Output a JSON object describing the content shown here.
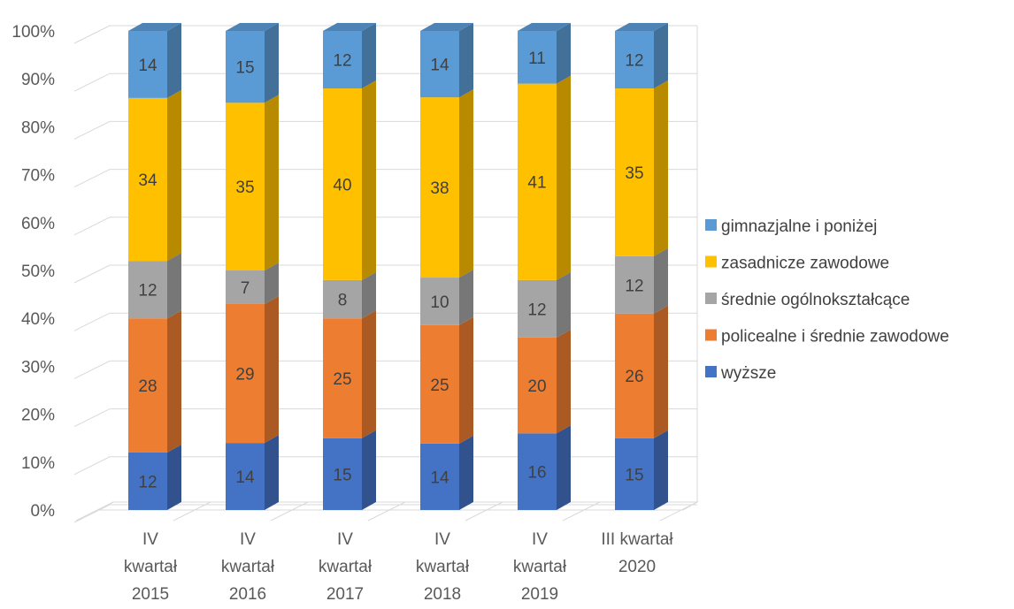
{
  "chart_data": {
    "type": "bar",
    "stacked": "percent",
    "three_d": true,
    "categories": [
      [
        "IV",
        "kwartał",
        "2015"
      ],
      [
        "IV",
        "kwartał",
        "2016"
      ],
      [
        "IV",
        "kwartał",
        "2017"
      ],
      [
        "IV",
        "kwartał",
        "2018"
      ],
      [
        "IV",
        "kwartał",
        "2019"
      ],
      [
        "III kwartał",
        "2020"
      ]
    ],
    "series": [
      {
        "name": "wyższe",
        "color": "#4472C4",
        "values": [
          12,
          14,
          15,
          14,
          16,
          15
        ]
      },
      {
        "name": "policealne i średnie zawodowe",
        "color": "#ED7D31",
        "values": [
          28,
          29,
          25,
          25,
          20,
          26
        ]
      },
      {
        "name": "średnie ogólnokształcące",
        "color": "#A5A5A5",
        "values": [
          12,
          7,
          8,
          10,
          12,
          12
        ]
      },
      {
        "name": "zasadnicze zawodowe",
        "color": "#FFC000",
        "values": [
          34,
          35,
          40,
          38,
          41,
          35
        ]
      },
      {
        "name": "gimnazjalne i poniżej",
        "color": "#5B9BD5",
        "values": [
          14,
          15,
          12,
          14,
          11,
          12
        ]
      }
    ],
    "y_ticks": [
      "0%",
      "10%",
      "20%",
      "30%",
      "40%",
      "50%",
      "60%",
      "70%",
      "80%",
      "90%",
      "100%"
    ],
    "ylim": [
      0,
      100
    ],
    "grid": true,
    "legend_position": "right",
    "legend_order": [
      "gimnazjalne i poniżej",
      "zasadnicze zawodowe",
      "średnie ogólnokształcące",
      "policealne i średnie zawodowe",
      "wyższe"
    ]
  }
}
